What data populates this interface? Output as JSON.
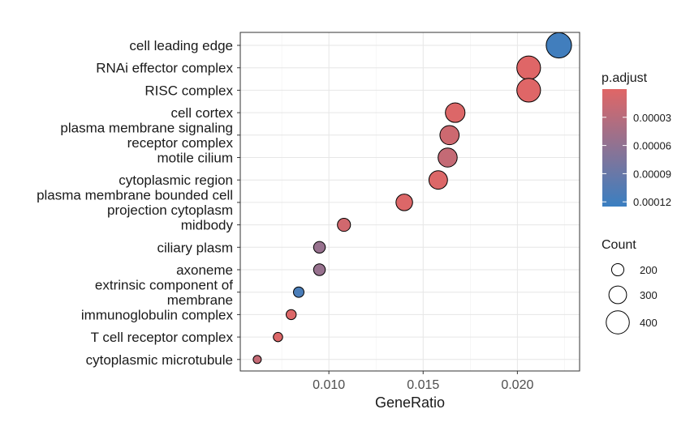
{
  "chart_data": {
    "type": "scatter",
    "xlabel": "GeneRatio",
    "xlim": [
      0.0053,
      0.0233
    ],
    "x_ticks": [
      0.01,
      0.015,
      0.02
    ],
    "x_tick_labels": [
      "0.010",
      "0.015",
      "0.020"
    ],
    "grid": true,
    "legend_position": "right",
    "categories": [
      "cell leading edge",
      "RNAi effector complex",
      "RISC complex",
      "cell cortex",
      "plasma membrane signaling receptor complex",
      "motile cilium",
      "cytoplasmic region",
      "plasma membrane bounded cell projection cytoplasm",
      "midbody",
      "ciliary plasm",
      "axoneme",
      "extrinsic component of membrane",
      "immunoglobulin complex",
      "T cell receptor complex",
      "cytoplasmic microtubule"
    ],
    "category_label_lines": [
      [
        "cell leading edge"
      ],
      [
        "RNAi effector complex"
      ],
      [
        "RISC complex"
      ],
      [
        "cell cortex"
      ],
      [
        "plasma membrane signaling",
        "receptor complex"
      ],
      [
        "motile cilium"
      ],
      [
        "cytoplasmic region"
      ],
      [
        "plasma membrane bounded cell",
        "projection cytoplasm"
      ],
      [
        "midbody"
      ],
      [
        "ciliary plasm"
      ],
      [
        "axoneme"
      ],
      [
        "extrinsic component of",
        "membrane"
      ],
      [
        "immunoglobulin complex"
      ],
      [
        "T cell receptor complex"
      ],
      [
        "cytoplasmic microtubule"
      ]
    ],
    "points": [
      {
        "category": "cell leading edge",
        "x": 0.0222,
        "count": 440,
        "p_adjust": 0.00012
      },
      {
        "category": "RNAi effector complex",
        "x": 0.0206,
        "count": 410,
        "p_adjust": 1e-06
      },
      {
        "category": "RISC complex",
        "x": 0.0206,
        "count": 410,
        "p_adjust": 1e-06
      },
      {
        "category": "cell cortex",
        "x": 0.0167,
        "count": 335,
        "p_adjust": 3e-06
      },
      {
        "category": "plasma membrane signaling receptor complex",
        "x": 0.0164,
        "count": 328,
        "p_adjust": 1.4e-05
      },
      {
        "category": "motile cilium",
        "x": 0.0163,
        "count": 326,
        "p_adjust": 2.1e-05
      },
      {
        "category": "cytoplasmic region",
        "x": 0.0158,
        "count": 316,
        "p_adjust": 3e-06
      },
      {
        "category": "plasma membrane bounded cell projection cytoplasm",
        "x": 0.014,
        "count": 280,
        "p_adjust": 3e-06
      },
      {
        "category": "midbody",
        "x": 0.0108,
        "count": 215,
        "p_adjust": 1.1e-05
      },
      {
        "category": "ciliary plasm",
        "x": 0.0095,
        "count": 190,
        "p_adjust": 5.5e-05
      },
      {
        "category": "axoneme",
        "x": 0.0095,
        "count": 190,
        "p_adjust": 5.5e-05
      },
      {
        "category": "extrinsic component of membrane",
        "x": 0.0084,
        "count": 168,
        "p_adjust": 0.000113
      },
      {
        "category": "immunoglobulin complex",
        "x": 0.008,
        "count": 160,
        "p_adjust": 3e-06
      },
      {
        "category": "T cell receptor complex",
        "x": 0.0073,
        "count": 146,
        "p_adjust": 3e-06
      },
      {
        "category": "cytoplasmic microtubule",
        "x": 0.0062,
        "count": 124,
        "p_adjust": 2.1e-05
      }
    ],
    "color_legend": {
      "title": "p.adjust",
      "range": [
        0.0,
        0.000125
      ],
      "ticks": [
        3e-05,
        6e-05,
        9e-05,
        0.00012
      ],
      "tick_labels": [
        "0.00003",
        "0.00006",
        "0.00009",
        "0.00012"
      ],
      "low_color": "#E06666",
      "high_color": "#3A7FC1"
    },
    "size_legend": {
      "title": "Count",
      "values": [
        200,
        300,
        400
      ],
      "labels": [
        "200",
        "300",
        "400"
      ]
    }
  }
}
